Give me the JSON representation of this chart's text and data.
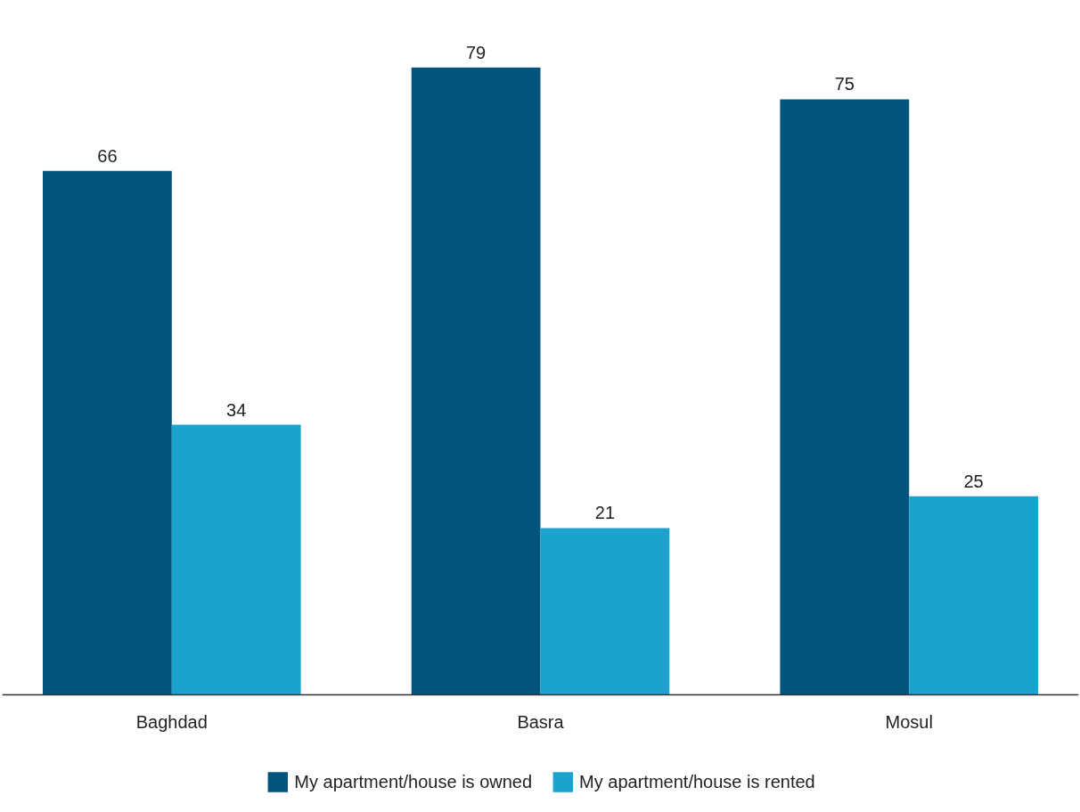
{
  "chart_data": {
    "type": "bar",
    "categories": [
      "Baghdad",
      "Basra",
      "Mosul"
    ],
    "series": [
      {
        "name": "My apartment/house is owned",
        "color": "#02547c",
        "values": [
          66,
          79,
          75
        ]
      },
      {
        "name": "My apartment/house is rented",
        "color": "#1ba3ce",
        "values": [
          34,
          21,
          25
        ]
      }
    ],
    "data_labels": true,
    "tick_labels": "x",
    "grid": false,
    "legend": "bottom"
  }
}
